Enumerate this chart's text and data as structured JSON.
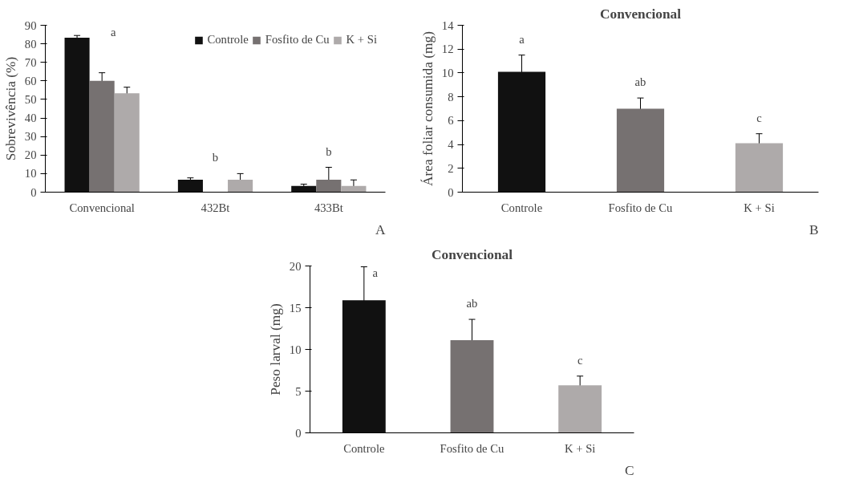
{
  "chart_data": [
    {
      "type": "bar",
      "ylabel": "Sobrevivência (%)",
      "categories": [
        "Convencional",
        "432Bt",
        "433Bt"
      ],
      "series": [
        {
          "name": "Controle",
          "color": "#111111",
          "values": [
            83.3,
            6.7,
            3.3
          ],
          "errors": [
            1.2,
            1.0,
            1.0
          ]
        },
        {
          "name": "Fosfito de Cu",
          "color": "#767171",
          "values": [
            60,
            0,
            6.7
          ],
          "errors": [
            4.4,
            null,
            6.7
          ]
        },
        {
          "name": "K + Si",
          "color": "#aeaaaa",
          "values": [
            53.3,
            6.7,
            3.3
          ],
          "errors": [
            3.3,
            3.3,
            3.3
          ]
        }
      ],
      "ylim": [
        0,
        90
      ],
      "yticks": [
        0,
        10,
        20,
        30,
        40,
        50,
        60,
        70,
        80,
        90
      ],
      "grid": false,
      "legend": "top right",
      "annotations": [
        "a",
        "b",
        "b",
        "A"
      ]
    },
    {
      "type": "bar",
      "title": "Convencional",
      "ylabel": "Área foliar consumida (mg)",
      "categories": [
        "Controle",
        "Fosfito de Cu",
        "K + Si"
      ],
      "values": [
        10.1,
        7.0,
        4.1
      ],
      "errors": [
        1.4,
        0.9,
        0.8
      ],
      "colors": [
        "#111111",
        "#767171",
        "#aeaaaa"
      ],
      "ylim": [
        0,
        14
      ],
      "yticks": [
        0,
        2,
        4,
        6,
        8,
        10,
        12,
        14
      ],
      "grid": false,
      "annotations": [
        "a",
        "ab",
        "c",
        "B"
      ]
    },
    {
      "type": "bar",
      "title": "Convencional",
      "ylabel": "Peso larval (mg)",
      "categories": [
        "Controle",
        "Fosfito de Cu",
        "K + Si"
      ],
      "values": [
        15.9,
        11.1,
        5.7
      ],
      "errors": [
        4.0,
        2.5,
        1.1
      ],
      "colors": [
        "#111111",
        "#767171",
        "#aeaaaa"
      ],
      "ylim": [
        0,
        20
      ],
      "yticks": [
        0,
        5,
        10,
        15,
        20
      ],
      "grid": false,
      "annotations": [
        "a",
        "ab",
        "c",
        "C"
      ]
    }
  ]
}
